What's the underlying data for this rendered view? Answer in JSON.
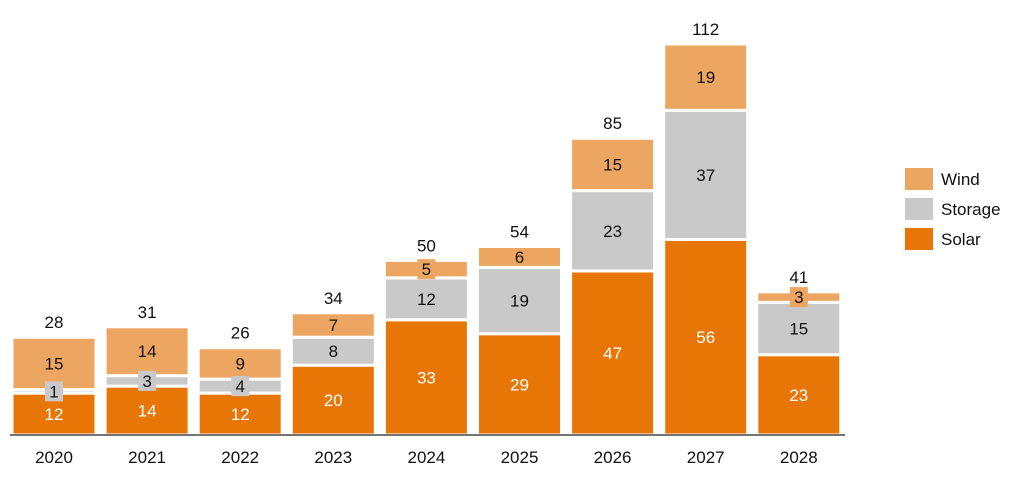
{
  "chart_data": {
    "type": "bar",
    "stacked": true,
    "title": "",
    "xlabel": "",
    "ylabel": "",
    "categories": [
      "2020",
      "2021",
      "2022",
      "2023",
      "2024",
      "2025",
      "2026",
      "2027",
      "2028"
    ],
    "series": [
      {
        "name": "Solar",
        "color": "#E87607",
        "label_color": "#ffffff",
        "values": [
          12,
          14,
          12,
          20,
          33,
          29,
          47,
          56,
          23
        ]
      },
      {
        "name": "Storage",
        "color": "#C9C9C9",
        "label_color": "#111111",
        "values": [
          1,
          3,
          4,
          8,
          12,
          19,
          23,
          37,
          15
        ]
      },
      {
        "name": "Wind",
        "color": "#EDA662",
        "label_color": "#111111",
        "values": [
          15,
          14,
          9,
          7,
          5,
          6,
          15,
          19,
          3
        ]
      }
    ],
    "totals": [
      28,
      31,
      26,
      34,
      50,
      54,
      85,
      112,
      41
    ],
    "ylim": [
      0,
      116
    ],
    "grid": false,
    "legend": {
      "position": "right",
      "order": [
        "Wind",
        "Storage",
        "Solar"
      ]
    }
  }
}
